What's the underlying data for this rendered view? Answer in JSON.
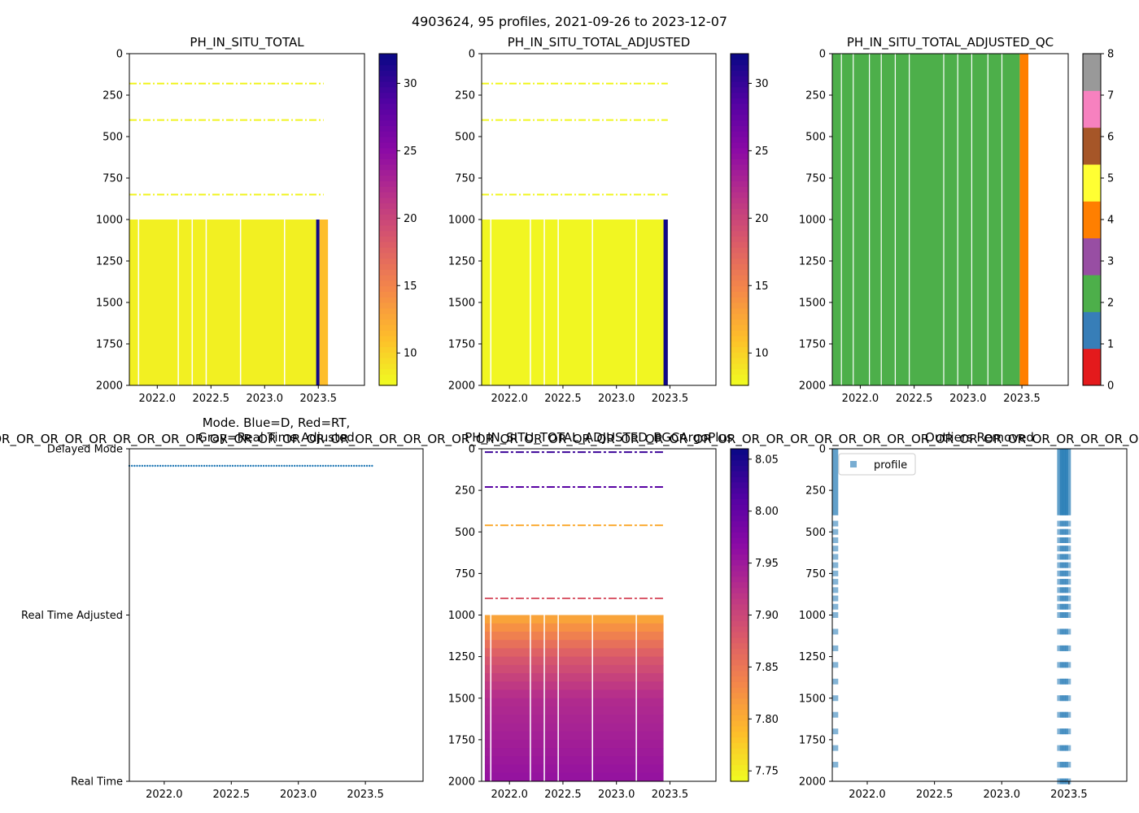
{
  "figure": {
    "suptitle": "4903624, 95 profiles, 2021-09-26 to 2023-12-07",
    "bgc_overflow_text": "OR_OR_OR_OR_OR_OR_OR_OR_OR_OR_OR_OR_OR_OR_OR_OR_OR_OR_OR_OR_OR_OR_OR_OR_OR_OR_OR_OR_OR_OR_OR_OR_OR_OR_OR_OR_OR_OR_OR_OR_OR_OR_OR_OR_OR_OR_OR_OR_OR_OR_OR_OR_OR_OR_OR_OR_OR_OR_OR_OR_OR_OR_OR_OR_OR_OR_OR_OR_OR_OR"
  },
  "colors": {
    "qc": [
      "#e41a1c",
      "#377eb8",
      "#4daf4a",
      "#984ea3",
      "#ff7f00",
      "#ffff33",
      "#a65628",
      "#f781bf",
      "#999999"
    ],
    "mode_points": "#1f77b4",
    "outlier_points": "#1f77b4"
  },
  "chart_data": [
    {
      "id": "raw",
      "type": "heatmap",
      "title": "PH_IN_SITU_TOTAL",
      "xlabel": "",
      "ylabel": "",
      "x_ticks": [
        "2022.0",
        "2022.5",
        "2023.0",
        "2023.5"
      ],
      "x_tick_values": [
        2022.0,
        2022.5,
        2023.0,
        2023.5
      ],
      "xlim": [
        2021.74,
        2023.93
      ],
      "y_ticks": [
        "0",
        "250",
        "500",
        "750",
        "1000",
        "1250",
        "1500",
        "1750",
        "2000"
      ],
      "y_tick_values": [
        0,
        250,
        500,
        750,
        1000,
        1250,
        1500,
        1750,
        2000
      ],
      "ylim": [
        2000,
        0
      ],
      "colorbar": {
        "colormap": "plasma_r",
        "range": [
          7.6,
          32.2
        ],
        "ticks": [
          "10",
          "15",
          "20",
          "25",
          "30"
        ],
        "tick_values": [
          10,
          15,
          20,
          25,
          30
        ]
      },
      "data_extent_x": [
        2021.74,
        2023.59
      ],
      "deep_block_depth": [
        1000,
        2000
      ],
      "deep_block_value": 8.1,
      "high_value_columns": [
        {
          "x": [
            2023.48,
            2023.51
          ],
          "value": 32.0
        }
      ],
      "late_columns": [
        {
          "x": [
            2023.51,
            2023.59
          ],
          "value": 11.0
        }
      ],
      "shallow_layers": [
        {
          "depth": 180,
          "value": 7.9,
          "x": [
            2021.74,
            2023.55
          ]
        },
        {
          "depth": 400,
          "value": 7.9,
          "x": [
            2021.74,
            2023.55
          ]
        },
        {
          "depth": 850,
          "value": 7.9,
          "x": [
            2021.74,
            2023.55
          ]
        }
      ],
      "gaps": [
        2021.82,
        2022.19,
        2022.32,
        2022.45,
        2022.77,
        2023.18
      ]
    },
    {
      "id": "adjusted",
      "type": "heatmap",
      "title": "PH_IN_SITU_TOTAL_ADJUSTED",
      "xlabel": "",
      "ylabel": "",
      "x_ticks": [
        "2022.0",
        "2022.5",
        "2023.0",
        "2023.5"
      ],
      "x_tick_values": [
        2022.0,
        2022.5,
        2023.0,
        2023.5
      ],
      "xlim": [
        2021.74,
        2023.93
      ],
      "y_ticks": [
        "0",
        "250",
        "500",
        "750",
        "1000",
        "1250",
        "1500",
        "1750",
        "2000"
      ],
      "y_tick_values": [
        0,
        250,
        500,
        750,
        1000,
        1250,
        1500,
        1750,
        2000
      ],
      "ylim": [
        2000,
        0
      ],
      "colorbar": {
        "colormap": "plasma_r",
        "range": [
          7.6,
          32.2
        ],
        "ticks": [
          "10",
          "15",
          "20",
          "25",
          "30"
        ],
        "tick_values": [
          10,
          15,
          20,
          25,
          30
        ]
      },
      "data_extent_x": [
        2021.74,
        2023.48
      ],
      "deep_block_depth": [
        1000,
        2000
      ],
      "deep_block_value": 7.8,
      "high_value_columns": [
        {
          "x": [
            2023.44,
            2023.48
          ],
          "value": 32.0
        }
      ],
      "late_columns": [],
      "shallow_layers": [
        {
          "depth": 180,
          "value": 7.8,
          "x": [
            2021.74,
            2023.48
          ]
        },
        {
          "depth": 400,
          "value": 7.8,
          "x": [
            2021.74,
            2023.48
          ]
        },
        {
          "depth": 850,
          "value": 7.8,
          "x": [
            2021.74,
            2023.48
          ]
        }
      ],
      "gaps": [
        2021.82,
        2022.19,
        2022.32,
        2022.45,
        2022.77,
        2023.18
      ]
    },
    {
      "id": "qc",
      "type": "heatmap",
      "title": "PH_IN_SITU_TOTAL_ADJUSTED_QC",
      "xlabel": "",
      "ylabel": "",
      "x_ticks": [
        "2022.0",
        "2022.5",
        "2023.0",
        "2023.5"
      ],
      "x_tick_values": [
        2022.0,
        2022.5,
        2023.0,
        2023.5
      ],
      "xlim": [
        2021.74,
        2023.93
      ],
      "y_ticks": [
        "0",
        "250",
        "500",
        "750",
        "1000",
        "1250",
        "1500",
        "1750",
        "2000"
      ],
      "y_tick_values": [
        0,
        250,
        500,
        750,
        1000,
        1250,
        1500,
        1750,
        2000
      ],
      "ylim": [
        2000,
        0
      ],
      "colorbar": {
        "colormap": "qc-categorical",
        "range": [
          0,
          8
        ],
        "ticks": [
          "0",
          "1",
          "2",
          "3",
          "4",
          "5",
          "6",
          "7",
          "8"
        ],
        "tick_values": [
          0,
          1,
          2,
          3,
          4,
          5,
          6,
          7,
          8
        ]
      },
      "blocks": [
        {
          "x": [
            2021.74,
            2023.48
          ],
          "qc_flag": 2
        },
        {
          "x": [
            2023.48,
            2023.56
          ],
          "qc_flag": 4
        }
      ],
      "gaps": [
        2021.82,
        2021.93,
        2022.08,
        2022.19,
        2022.32,
        2022.45,
        2022.77,
        2022.9,
        2023.03,
        2023.18,
        2023.31
      ]
    },
    {
      "id": "mode",
      "type": "scatter",
      "title": "Mode. Blue=D, Red=RT,",
      "title_line2": "Gray=Real Time Adjusted",
      "xlabel": "",
      "ylabel": "",
      "x_ticks": [
        "2022.0",
        "2022.5",
        "2023.0",
        "2023.5"
      ],
      "x_tick_values": [
        2022.0,
        2022.5,
        2023.0,
        2023.5
      ],
      "xlim": [
        2021.74,
        2023.93
      ],
      "y_ticks": [
        "Delayed Mode",
        "Real Time Adjusted",
        "Real Time"
      ],
      "y_tick_values": [
        2,
        1,
        0
      ],
      "ylim": [
        0,
        2
      ],
      "points": {
        "mode_value": 2,
        "x_start": 2021.74,
        "x_end": 2023.55,
        "count": 95
      }
    },
    {
      "id": "bgc",
      "type": "heatmap",
      "title": "PH_IN_SITU_TOTAL_ADJUSTED_BGCArgoPlus",
      "xlabel": "",
      "ylabel": "",
      "x_ticks": [
        "2022.0",
        "2022.5",
        "2023.0",
        "2023.5"
      ],
      "x_tick_values": [
        2022.0,
        2022.5,
        2023.0,
        2023.5
      ],
      "xlim": [
        2021.74,
        2023.93
      ],
      "y_ticks": [
        "0",
        "250",
        "500",
        "750",
        "1000",
        "1250",
        "1500",
        "1750",
        "2000"
      ],
      "y_tick_values": [
        0,
        250,
        500,
        750,
        1000,
        1250,
        1500,
        1750,
        2000
      ],
      "ylim": [
        2000,
        0
      ],
      "colorbar": {
        "colormap": "plasma_r",
        "range": [
          7.74,
          8.06
        ],
        "ticks": [
          "7.75",
          "7.80",
          "7.85",
          "7.90",
          "7.95",
          "8.00",
          "8.05"
        ],
        "tick_values": [
          7.75,
          7.8,
          7.85,
          7.9,
          7.95,
          8.0,
          8.05
        ]
      },
      "data_extent_x": [
        2021.77,
        2023.44
      ],
      "deep_profile": [
        {
          "depth": 1000,
          "value": 7.8
        },
        {
          "depth": 1250,
          "value": 7.88
        },
        {
          "depth": 1500,
          "value": 7.93
        },
        {
          "depth": 2000,
          "value": 7.96
        }
      ],
      "shallow_layers": [
        {
          "depth": 20,
          "value": 8.03
        },
        {
          "depth": 230,
          "value": 8.01
        },
        {
          "depth": 460,
          "value": 7.8
        },
        {
          "depth": 900,
          "value": 7.88
        }
      ],
      "gaps": [
        2021.82,
        2022.19,
        2022.32,
        2022.45,
        2022.77,
        2023.18
      ]
    },
    {
      "id": "outliers",
      "type": "scatter",
      "title": "Outliers Removed",
      "xlabel": "",
      "ylabel": "",
      "x_ticks": [
        "2022.0",
        "2022.5",
        "2023.0",
        "2023.5"
      ],
      "x_tick_values": [
        2022.0,
        2022.5,
        2023.0,
        2023.5
      ],
      "xlim": [
        2021.74,
        2023.93
      ],
      "y_ticks": [
        "0",
        "250",
        "500",
        "750",
        "1000",
        "1250",
        "1500",
        "1750",
        "2000"
      ],
      "y_tick_values": [
        0,
        250,
        500,
        750,
        1000,
        1250,
        1500,
        1750,
        2000
      ],
      "ylim": [
        2000,
        0
      ],
      "legend": {
        "label": "profile",
        "placement": "top-left"
      },
      "groups": [
        {
          "x": [
            2021.76
          ],
          "dense_depth": [
            0,
            400
          ],
          "sparse_depths": [
            450,
            500,
            550,
            600,
            650,
            700,
            750,
            800,
            850,
            900,
            950,
            1000,
            1100,
            1200,
            1300,
            1400,
            1500,
            1600,
            1700,
            1800,
            1900
          ]
        },
        {
          "x": [
            2023.43,
            2023.45,
            2023.47,
            2023.49
          ],
          "dense_depth": [
            0,
            400
          ],
          "sparse_depths": [
            450,
            500,
            550,
            600,
            650,
            700,
            750,
            800,
            850,
            900,
            950,
            1000,
            1100,
            1200,
            1300,
            1400,
            1500,
            1600,
            1700,
            1800,
            1900,
            2000
          ]
        }
      ]
    }
  ]
}
